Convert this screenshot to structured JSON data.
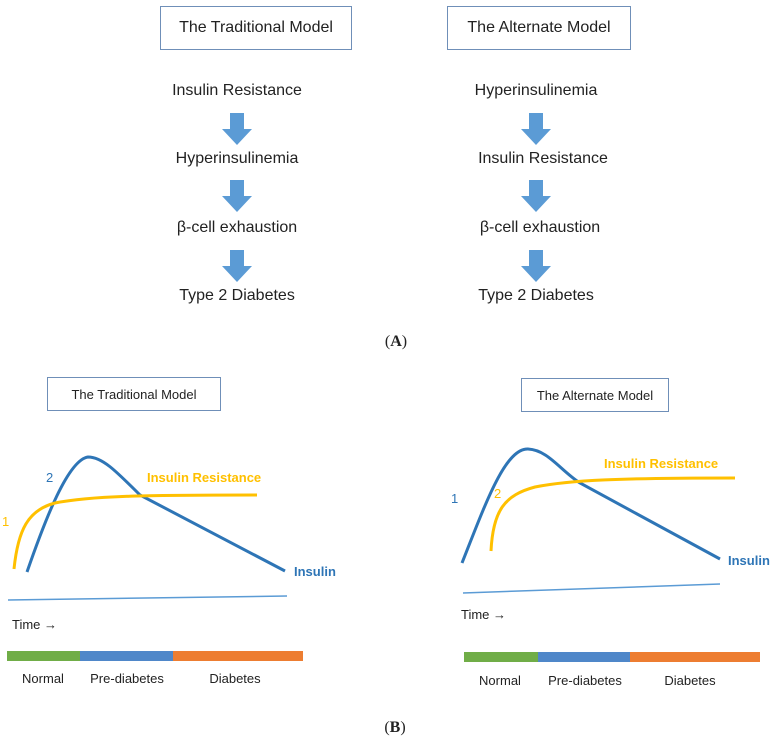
{
  "panel_a": {
    "label_prefix": "(",
    "label_letter": "A",
    "label_suffix": ")",
    "traditional": {
      "title": "The Traditional Model",
      "steps": [
        "Insulin Resistance",
        "Hyperinsulinemia",
        "β-cell exhaustion",
        "Type 2 Diabetes"
      ]
    },
    "alternate": {
      "title": "The Alternate Model",
      "steps": [
        "Hyperinsulinemia",
        "Insulin Resistance",
        "β-cell exhaustion",
        "Type 2 Diabetes"
      ]
    }
  },
  "panel_b": {
    "label_prefix": "(",
    "label_letter": "B",
    "label_suffix": ")",
    "traditional": {
      "title": "The Traditional Model",
      "resistance_label": "Insulin Resistance",
      "insulin_label": "Insulin",
      "resistance_order": "1",
      "insulin_order": "2",
      "time_label": "Time →",
      "stages": [
        "Normal",
        "Pre-diabetes",
        "Diabetes"
      ]
    },
    "alternate": {
      "title": "The Alternate Model",
      "resistance_label": "Insulin Resistance",
      "insulin_label": "Insulin",
      "insulin_order": "1",
      "resistance_order": "2",
      "time_label": "Time →",
      "stages": [
        "Normal",
        "Pre-diabetes",
        "Diabetes"
      ]
    }
  },
  "colors": {
    "box_border": "#6f8fb8",
    "arrow": "#5b9bd5",
    "insulin": "#2e75b6",
    "resistance": "#ffc000",
    "time_axis": "#5b9bd5",
    "normal": "#70ad47",
    "prediabetes": "#4f87c9",
    "diabetes": "#ed7d31"
  }
}
